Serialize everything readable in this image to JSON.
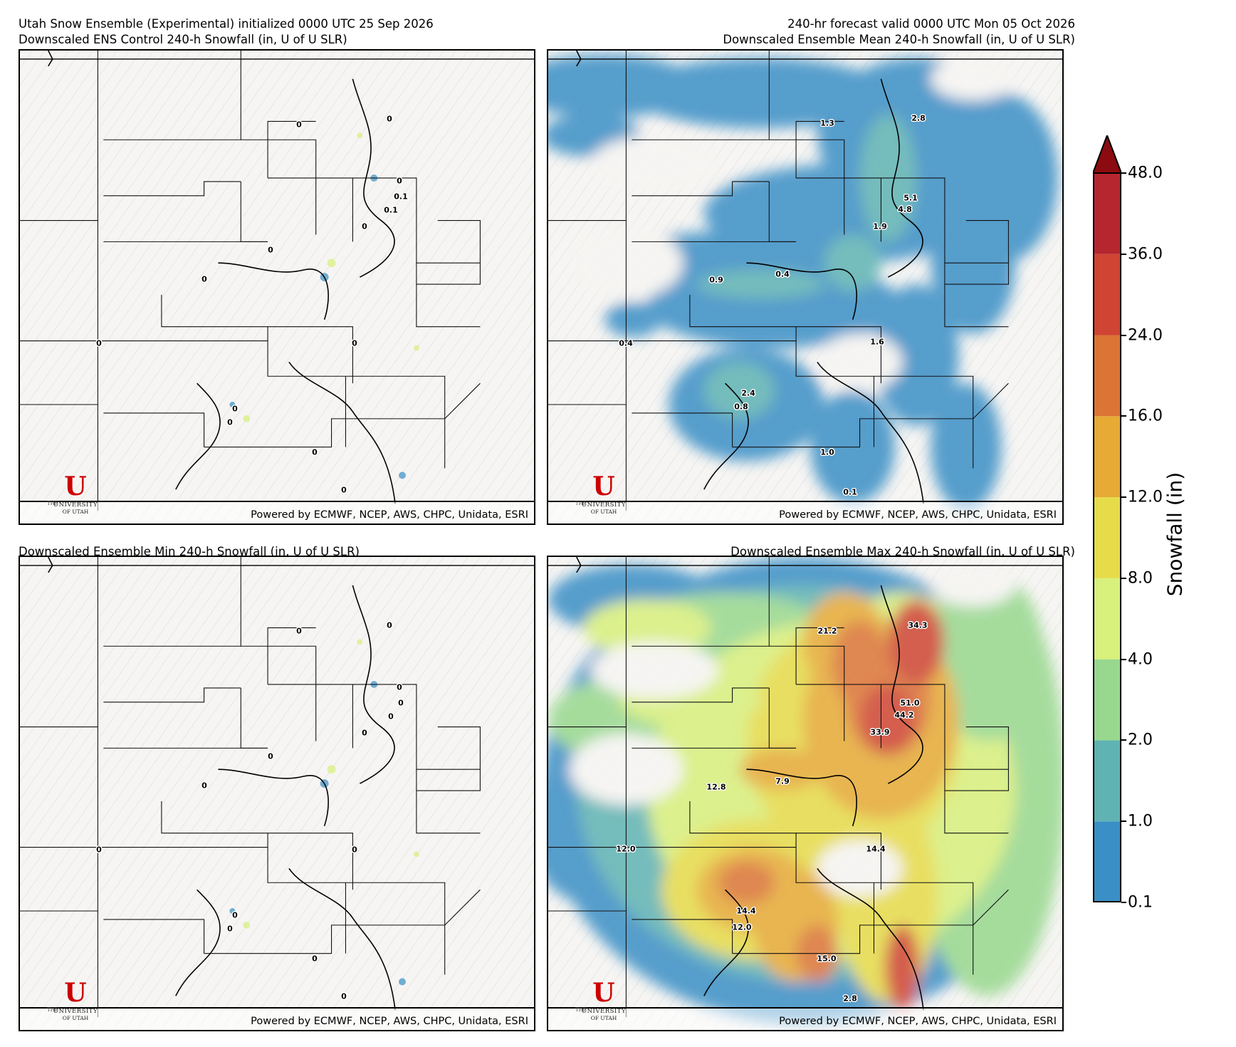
{
  "header": {
    "top_left_line1": "Utah Snow Ensemble (Experimental) initialized 0000 UTC 25 Sep 2026",
    "top_left_line2": "Downscaled ENS Control 240-h Snowfall (in, U of U SLR)",
    "top_right_line1": "240-hr forecast valid 0000 UTC Mon 05 Oct 2026",
    "top_right_line2": "Downscaled Ensemble Mean 240-h Snowfall (in, U of U SLR)",
    "bottom_left_title": "Downscaled Ensemble Min 240-h Snowfall (in, U of U SLR)",
    "bottom_right_title": "Downscaled Ensemble Max 240-h Snowfall (in, U of U SLR)"
  },
  "footer": {
    "credit": "Powered by ECMWF, NCEP, AWS, CHPC, Unidata, ESRI",
    "logo_the": "THE",
    "logo_letter": "U",
    "logo_university": "UNIVERSITY",
    "logo_of_utah": "OF UTAH"
  },
  "panels": {
    "control": {
      "labels": [
        "0",
        "0",
        "0.1",
        "0.1",
        "0",
        "0",
        "0",
        "0",
        "0",
        "0",
        "0",
        "0",
        "0",
        "0"
      ]
    },
    "mean": {
      "labels": [
        "1.3",
        "2.8",
        "5.1",
        "4.8",
        "1.9",
        "0.9",
        "0.4",
        "0.4",
        "1.6",
        "2.4",
        "0.8",
        "1.0",
        "0.1"
      ]
    },
    "min": {
      "labels": [
        "0",
        "0",
        "0",
        "0",
        "0",
        "0",
        "0",
        "0",
        "0",
        "0",
        "0",
        "0",
        "0",
        "0"
      ]
    },
    "max": {
      "labels": [
        "21.2",
        "34.3",
        "51.0",
        "44.2",
        "33.9",
        "12.8",
        "7.9",
        "12.0",
        "14.4",
        "14.4",
        "12.0",
        "15.0",
        "2.8"
      ]
    }
  },
  "colorbar": {
    "title": "Snowfall (in)",
    "ticks": [
      "0.1",
      "1.0",
      "2.0",
      "4.0",
      "8.0",
      "12.0",
      "16.0",
      "24.0",
      "36.0",
      "48.0"
    ],
    "colors": [
      "#3a8fc6",
      "#5fb3b3",
      "#98d88e",
      "#d8f07c",
      "#e6dc4a",
      "#e6aa35",
      "#dc7435",
      "#cf4433",
      "#b5262f"
    ],
    "extend_color": "#8b0b10"
  }
}
